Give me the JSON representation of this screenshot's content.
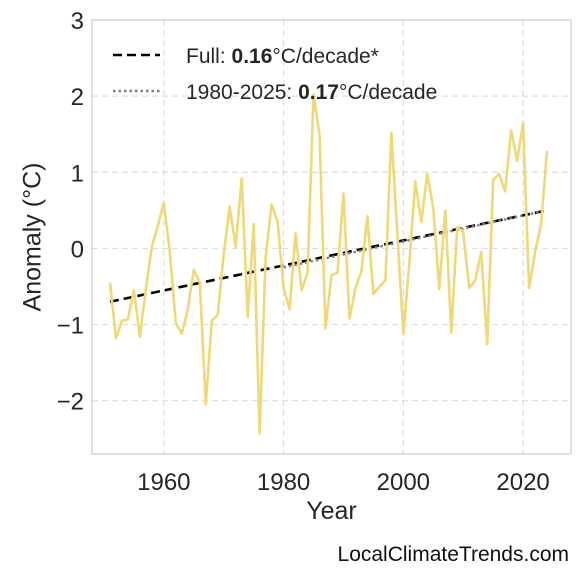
{
  "chart_data": {
    "type": "line",
    "title": "",
    "xlabel": "Year",
    "ylabel": "Anomaly (°C)",
    "xlim": [
      1948,
      2028
    ],
    "ylim": [
      -2.7,
      3.0
    ],
    "x_ticks": [
      1960,
      1980,
      2000,
      2020
    ],
    "x_tick_labels": [
      "1960",
      "1980",
      "2000",
      "2020"
    ],
    "y_ticks": [
      3,
      2,
      1,
      0,
      -1,
      -2
    ],
    "y_tick_labels": [
      "3",
      "2",
      "1",
      "0",
      "−1",
      "−2"
    ],
    "grid": true,
    "legend_position": "top-left",
    "colors": {
      "anomaly": "#f0d878",
      "full_trend": "#000000",
      "recent_trend": "#808080"
    },
    "x": [
      1951,
      1952,
      1953,
      1954,
      1955,
      1956,
      1957,
      1958,
      1959,
      1960,
      1961,
      1962,
      1963,
      1964,
      1965,
      1966,
      1967,
      1968,
      1969,
      1970,
      1971,
      1972,
      1973,
      1974,
      1975,
      1976,
      1977,
      1978,
      1979,
      1980,
      1981,
      1982,
      1983,
      1984,
      1985,
      1986,
      1987,
      1988,
      1989,
      1990,
      1991,
      1992,
      1993,
      1994,
      1995,
      1996,
      1997,
      1998,
      1999,
      2000,
      2001,
      2002,
      2003,
      2004,
      2005,
      2006,
      2007,
      2008,
      2009,
      2010,
      2011,
      2012,
      2013,
      2014,
      2015,
      2016,
      2017,
      2018,
      2019,
      2020,
      2021,
      2022,
      2023,
      2024
    ],
    "series": [
      {
        "key": "anomaly",
        "values": [
          -0.45,
          -1.18,
          -0.95,
          -0.93,
          -0.55,
          -1.16,
          -0.52,
          0.02,
          0.3,
          0.6,
          -0.05,
          -0.98,
          -1.12,
          -0.8,
          -0.28,
          -0.45,
          -2.05,
          -0.95,
          -0.87,
          -0.08,
          0.55,
          0.02,
          0.92,
          -0.9,
          0.32,
          -2.43,
          -0.12,
          0.58,
          0.35,
          -0.52,
          -0.8,
          0.2,
          -0.55,
          -0.32,
          2.02,
          1.5,
          -1.05,
          -0.35,
          -0.32,
          0.72,
          -0.92,
          -0.52,
          -0.3,
          0.42,
          -0.6,
          -0.5,
          -0.42,
          1.52,
          0.18,
          -1.12,
          -0.2,
          0.88,
          0.35,
          0.98,
          0.52,
          -0.53,
          0.5,
          -1.1,
          0.28,
          0.22,
          -0.52,
          -0.42,
          -0.05,
          -1.26,
          0.9,
          0.98,
          0.75,
          1.55,
          1.15,
          1.65,
          -0.52,
          -0.05,
          0.32,
          1.28
        ]
      }
    ],
    "trend_lines": [
      {
        "key": "full",
        "x": [
          1951,
          2024
        ],
        "y": [
          -0.7,
          0.5
        ]
      },
      {
        "key": "recent",
        "x": [
          1980,
          2024
        ],
        "y": [
          -0.25,
          0.5
        ]
      }
    ],
    "legend": [
      {
        "prefix": "Full: ",
        "rate": "0.16",
        "suffix": "°C/decade*",
        "style": "dashed"
      },
      {
        "prefix": "1980-2025: ",
        "rate": "0.17",
        "suffix": "°C/decade",
        "style": "dotted"
      }
    ]
  },
  "watermark": "LocalClimateTrends.com"
}
